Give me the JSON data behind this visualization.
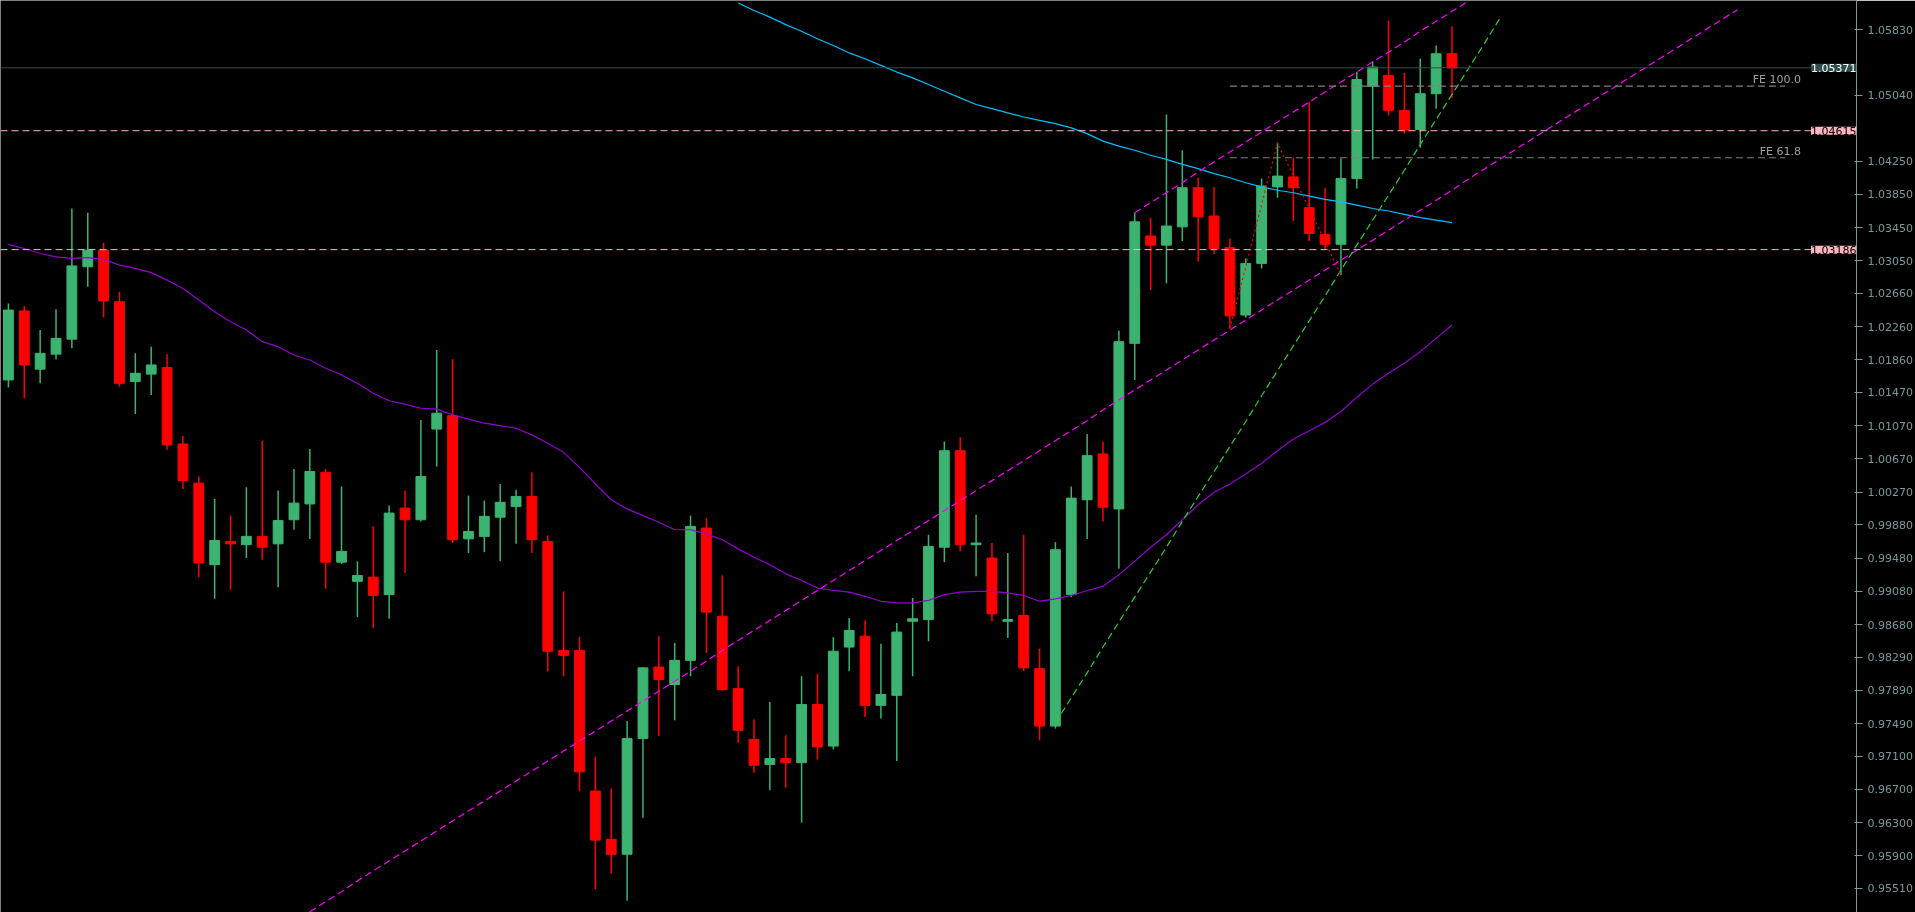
{
  "chart_data": {
    "type": "candlestick",
    "categories": [
      null,
      null,
      null,
      null,
      null,
      null,
      null,
      null,
      null,
      null,
      null,
      null,
      null,
      null,
      null,
      null,
      null,
      null,
      null,
      null,
      null,
      null,
      null,
      null,
      null,
      null,
      null,
      null,
      null,
      null,
      null,
      null,
      null,
      null,
      null,
      null,
      null,
      null,
      null,
      null,
      null,
      null,
      null,
      null,
      null,
      null,
      null,
      null,
      null,
      null,
      null,
      null,
      null,
      null,
      null,
      null,
      null,
      null,
      null,
      null,
      null,
      null,
      null,
      null,
      null,
      null,
      null,
      null,
      null,
      null,
      null,
      null,
      null,
      null,
      null,
      null,
      null,
      null,
      null,
      null,
      null,
      null,
      null,
      null,
      null,
      null,
      null,
      null,
      null,
      null,
      null,
      null,
      null,
      null,
      null,
      null,
      null,
      null,
      null,
      null,
      null,
      null,
      null,
      null,
      null,
      null,
      null,
      null,
      null,
      null,
      null,
      null,
      null,
      null,
      null,
      null,
      null
    ],
    "colors": [
      "#3cb371",
      "#ff0000",
      "#3cb371",
      "#3cb371",
      "#3cb371",
      "#3cb371",
      "#ff0000",
      "#ff0000",
      "#3cb371",
      "#3cb371",
      "#ff0000",
      "#ff0000",
      "#ff0000",
      "#3cb371",
      "#ff0000",
      "#3cb371",
      "#ff0000",
      "#3cb371",
      "#3cb371",
      "#3cb371",
      "#ff0000",
      "#3cb371",
      "#3cb371",
      "#ff0000",
      "#3cb371",
      "#ff0000",
      "#3cb371",
      "#3cb371",
      "#ff0000",
      "#3cb371",
      "#3cb371",
      "#3cb371",
      "#3cb371",
      "#ff0000",
      "#ff0000",
      "#ff0000",
      "#ff0000",
      "#ff0000",
      "#ff0000",
      "#3cb371",
      "#3cb371",
      "#ff0000",
      "#3cb371",
      "#3cb371",
      "#ff0000",
      "#ff0000",
      "#ff0000",
      "#ff0000",
      "#3cb371",
      "#ff0000",
      "#3cb371",
      "#ff0000",
      "#3cb371",
      "#3cb371",
      "#ff0000",
      "#3cb371",
      "#3cb371",
      "#3cb371",
      "#3cb371",
      "#3cb371",
      "#ff0000",
      "#3cb371",
      "#ff0000",
      "#3cb371",
      "#ff0000",
      "#ff0000",
      "#3cb371",
      "#3cb371",
      "#3cb371",
      "#ff0000",
      "#3cb371",
      "#3cb371",
      "#ff0000",
      "#3cb371",
      "#3cb371",
      "#ff0000",
      "#ff0000",
      "#ff0000",
      "#3cb371",
      "#3cb371",
      "#3cb371",
      "#ff0000",
      "#ff0000",
      "#ff0000",
      "#3cb371",
      "#3cb371",
      "#3cb371",
      "#ff0000",
      "#ff0000",
      "#3cb371",
      "#3cb371",
      "#ff0000",
      null,
      null,
      null,
      null,
      null,
      null,
      null,
      null,
      null,
      null,
      null,
      null,
      null,
      null,
      null,
      null,
      null,
      null,
      null,
      null,
      null,
      null,
      null,
      null,
      null
    ],
    "ohlc": [
      [
        1.0162,
        1.0254,
        1.0153,
        1.0246
      ],
      [
        1.0245,
        1.0251,
        1.014,
        1.018
      ],
      [
        1.0175,
        1.0222,
        1.0158,
        1.0194
      ],
      [
        1.0193,
        1.0247,
        1.0187,
        1.0212
      ],
      [
        1.0211,
        1.0368,
        1.02,
        1.0299
      ],
      [
        1.0298,
        1.0363,
        1.0274,
        1.0318
      ],
      [
        1.0318,
        1.0327,
        1.0237,
        1.0257
      ],
      [
        1.0256,
        1.0268,
        1.0154,
        1.0158
      ],
      [
        1.016,
        1.0194,
        1.0121,
        1.017
      ],
      [
        1.0169,
        1.0202,
        1.0144,
        1.018
      ],
      [
        1.0177,
        1.0193,
        1.0078,
        1.0084
      ],
      [
        1.0085,
        1.0095,
        1.0031,
        1.0041
      ],
      [
        1.0038,
        1.0046,
        0.9925,
        0.9942
      ],
      [
        0.994,
        1.0019,
        0.9899,
        0.9969
      ],
      [
        0.9968,
        0.9999,
        0.991,
        0.9965
      ],
      [
        0.9964,
        1.0033,
        0.9948,
        0.9974
      ],
      [
        0.9974,
        1.0089,
        0.9946,
        0.9961
      ],
      [
        0.9965,
        1.0029,
        0.9913,
        0.9993
      ],
      [
        0.9994,
        1.0055,
        0.9982,
        1.0014
      ],
      [
        1.0013,
        1.0079,
        0.9971,
        1.0052
      ],
      [
        1.0051,
        1.0055,
        0.9911,
        0.9943
      ],
      [
        0.9943,
        1.0034,
        0.9941,
        0.9956
      ],
      [
        0.992,
        0.9944,
        0.9877,
        0.9927
      ],
      [
        0.9925,
        0.9986,
        0.9864,
        0.9903
      ],
      [
        0.9904,
        1.0011,
        0.9875,
        1.0002
      ],
      [
        1.0008,
        1.0029,
        0.993,
        0.9994
      ],
      [
        0.9994,
        1.0114,
        0.9992,
        1.0046
      ],
      [
        1.0103,
        1.0198,
        1.0058,
        1.0122
      ],
      [
        1.0119,
        1.0187,
        0.9966,
        0.997
      ],
      [
        0.9971,
        1.0023,
        0.9954,
        0.998
      ],
      [
        0.9974,
        1.0017,
        0.9955,
        0.9998
      ],
      [
        0.9997,
        1.0037,
        0.9944,
        1.0015
      ],
      [
        1.001,
        1.003,
        0.9965,
        1.0022
      ],
      [
        1.0022,
        1.0051,
        0.9954,
        0.997
      ],
      [
        0.9968,
        0.9975,
        0.9812,
        0.9836
      ],
      [
        0.9837,
        0.9908,
        0.9806,
        0.9831
      ],
      [
        0.9837,
        0.9853,
        0.9668,
        0.9691
      ],
      [
        0.9668,
        0.9709,
        0.955,
        0.9609
      ],
      [
        0.961,
        0.9671,
        0.9569,
        0.9592
      ],
      [
        0.9592,
        0.9752,
        0.9536,
        0.9731
      ],
      [
        0.9731,
        0.9817,
        0.9636,
        0.9816
      ],
      [
        0.9817,
        0.9854,
        0.9734,
        0.9802
      ],
      [
        0.9796,
        0.9846,
        0.9753,
        0.9825
      ],
      [
        0.9825,
        0.9999,
        0.9806,
        0.9986
      ],
      [
        0.9984,
        0.9996,
        0.9834,
        0.9883
      ],
      [
        0.9878,
        0.9927,
        0.9788,
        0.979
      ],
      [
        0.9791,
        0.9818,
        0.9726,
        0.9741
      ],
      [
        0.973,
        0.9754,
        0.969,
        0.9699
      ],
      [
        0.97,
        0.9775,
        0.9669,
        0.9707
      ],
      [
        0.9707,
        0.9735,
        0.9672,
        0.9702
      ],
      [
        0.9702,
        0.9806,
        0.963,
        0.9772
      ],
      [
        0.9772,
        0.9809,
        0.9706,
        0.9721
      ],
      [
        0.9722,
        0.9853,
        0.9718,
        0.9836
      ],
      [
        0.9841,
        0.9876,
        0.9812,
        0.9861
      ],
      [
        0.9854,
        0.9873,
        0.9757,
        0.9771
      ],
      [
        0.9771,
        0.9845,
        0.9755,
        0.9784
      ],
      [
        0.9783,
        0.987,
        0.9704,
        0.9859
      ],
      [
        0.9872,
        0.99,
        0.9806,
        0.9875
      ],
      [
        0.9874,
        0.9976,
        0.9848,
        0.9962
      ],
      [
        0.9961,
        1.0088,
        0.9943,
        1.0077
      ],
      [
        1.0077,
        1.0093,
        0.9956,
        0.9964
      ],
      [
        0.9964,
        1.0,
        0.9926,
        0.9966
      ],
      [
        0.9948,
        0.9966,
        0.9872,
        0.9881
      ],
      [
        0.9872,
        0.9954,
        0.9852,
        0.9874
      ],
      [
        0.9879,
        0.9976,
        0.9812,
        0.9816
      ],
      [
        0.9815,
        0.9839,
        0.9729,
        0.9746
      ],
      [
        0.9746,
        0.9967,
        0.9743,
        0.9958
      ],
      [
        0.9904,
        1.0034,
        0.9901,
        1.002
      ],
      [
        1.0018,
        1.0097,
        0.9971,
        1.0071
      ],
      [
        1.0073,
        1.0088,
        0.9992,
        1.0009
      ],
      [
        1.0007,
        1.0221,
        0.9935,
        1.0208
      ],
      [
        1.0206,
        1.0363,
        1.0162,
        1.0352
      ],
      [
        1.0335,
        1.0357,
        1.027,
        1.0324
      ],
      [
        1.0324,
        1.0481,
        1.0278,
        1.0347
      ],
      [
        1.0346,
        1.0438,
        1.0329,
        1.0393
      ],
      [
        1.0393,
        1.0405,
        1.0304,
        1.0358
      ],
      [
        1.0359,
        1.0394,
        1.0313,
        1.032
      ],
      [
        1.0321,
        1.0332,
        1.0224,
        1.0239
      ],
      [
        1.024,
        1.0308,
        1.0237,
        1.0302
      ],
      [
        1.0302,
        1.0404,
        1.0296,
        1.0395
      ],
      [
        1.0394,
        1.0447,
        1.0381,
        1.0407
      ],
      [
        1.0406,
        1.0429,
        1.0353,
        1.0393
      ],
      [
        1.0369,
        1.0496,
        1.0329,
        1.0338
      ],
      [
        1.0337,
        1.0393,
        1.0319,
        1.0325
      ],
      [
        1.0325,
        1.0428,
        1.0288,
        1.0404
      ],
      [
        1.0404,
        1.0532,
        1.0392,
        1.0523
      ],
      [
        1.0515,
        1.0545,
        1.0427,
        1.0538
      ],
      [
        1.0528,
        1.0594,
        1.048,
        1.0486
      ],
      [
        1.0486,
        1.0531,
        1.0458,
        1.0462
      ],
      [
        1.0463,
        1.0548,
        1.0441,
        1.0506
      ],
      [
        1.0506,
        1.0564,
        1.0488,
        1.0554
      ],
      [
        1.0554,
        1.0587,
        1.0501,
        1.0537
      ],
      null,
      null,
      null,
      null,
      null,
      null,
      null,
      null,
      null,
      null,
      null,
      null,
      null,
      null,
      null,
      null,
      null,
      null,
      null,
      null,
      null,
      null,
      null,
      null,
      null
    ],
    "series": [
      {
        "type": "line",
        "color": "#9400d3",
        "line_style": "solid",
        "values": [
          1.0325,
          1.032,
          1.0314,
          1.031,
          1.0308,
          1.0309,
          1.0307,
          1.03,
          1.0296,
          1.0291,
          1.0282,
          1.0272,
          1.0258,
          1.0244,
          1.0232,
          1.0222,
          1.0208,
          1.0202,
          1.0192,
          1.0186,
          1.0176,
          1.0168,
          1.0158,
          1.0146,
          1.0137,
          1.0133,
          1.0128,
          1.0127,
          1.012,
          1.0115,
          1.011,
          1.0107,
          1.0104,
          1.0096,
          1.0086,
          1.0075,
          1.0057,
          1.0037,
          1.0018,
          1.0007,
          0.9999,
          0.9991,
          0.9982,
          0.9982,
          0.9977,
          0.997,
          0.9959,
          0.9949,
          0.994,
          0.9929,
          0.9921,
          0.9912,
          0.9909,
          0.9907,
          0.9902,
          0.9896,
          0.9894,
          0.9894,
          0.9897,
          0.9904,
          0.9907,
          0.9908,
          0.9908,
          0.9906,
          0.9903,
          0.9896,
          0.9899,
          0.9903,
          0.9909,
          0.9914,
          0.9928,
          0.9944,
          0.9961,
          0.9976,
          0.9994,
          1.0012,
          1.0027,
          1.0037,
          1.0049,
          1.0062,
          1.0077,
          1.0091,
          1.0101,
          1.0111,
          1.0124,
          1.0141,
          1.0157,
          1.017,
          1.0182,
          1.0196,
          1.0212,
          1.0228,
          null,
          null,
          null,
          null,
          null,
          null,
          null,
          null,
          null,
          null,
          null,
          null,
          null,
          null,
          null,
          null,
          null,
          null,
          null,
          null,
          null,
          null,
          null,
          null,
          null
        ]
      },
      {
        "type": "line",
        "color": "#00bfff",
        "line_style": "solid",
        "values": [
          null,
          null,
          null,
          null,
          null,
          null,
          null,
          null,
          null,
          null,
          null,
          null,
          null,
          null,
          null,
          null,
          null,
          null,
          null,
          null,
          null,
          null,
          null,
          null,
          null,
          null,
          null,
          null,
          null,
          null,
          null,
          null,
          null,
          null,
          null,
          null,
          null,
          null,
          null,
          null,
          null,
          null,
          null,
          null,
          null,
          null,
          1.0615,
          1.0606,
          1.0598,
          1.0589,
          1.0581,
          1.0572,
          1.0564,
          1.0555,
          1.0548,
          1.054,
          1.0532,
          1.0525,
          1.0517,
          1.0509,
          1.0501,
          1.0493,
          1.0488,
          1.0483,
          1.0478,
          1.0474,
          1.047,
          1.0465,
          1.0458,
          1.0449,
          1.0443,
          1.0438,
          1.0432,
          1.0427,
          1.0421,
          1.0416,
          1.041,
          1.0405,
          1.0399,
          1.0394,
          1.039,
          1.0387,
          1.0383,
          1.0379,
          1.0376,
          1.0372,
          1.0368,
          1.0365,
          1.0361,
          1.0357,
          1.0354,
          1.0351,
          null,
          null,
          null,
          null,
          null,
          null,
          null,
          null,
          null,
          null,
          null,
          null,
          null,
          null,
          null,
          null,
          null,
          null,
          null,
          null,
          null,
          null,
          null,
          null,
          null
        ]
      },
      {
        "type": "line",
        "color": "#ff00ff",
        "line_style": "dashed",
        "values": [
          null,
          null,
          null,
          null,
          null,
          null,
          null,
          null,
          null,
          null,
          null,
          null,
          null,
          null,
          null,
          null,
          null,
          null,
          null,
          null,
          null,
          null,
          null,
          null,
          null,
          null,
          null,
          null,
          null,
          null,
          null,
          null,
          null,
          null,
          null,
          null,
          null,
          null,
          null,
          null,
          null,
          null,
          null,
          null,
          null,
          null,
          null,
          null,
          null,
          null,
          null,
          null,
          null,
          null,
          null,
          null,
          null,
          null,
          null,
          null,
          null,
          null,
          null,
          null,
          null,
          null,
          null,
          null,
          null,
          null,
          null,
          1.0363,
          1.0375,
          1.0387,
          1.0399,
          1.0412,
          1.0424,
          1.0436,
          1.0448,
          1.046,
          1.0472,
          1.0484,
          1.0496,
          1.0508,
          1.052,
          1.0532,
          1.0544,
          1.0556,
          1.0568,
          1.0581,
          1.0593,
          1.0605,
          1.0617,
          null,
          null,
          null,
          null,
          null,
          null,
          null,
          null,
          null,
          null,
          null,
          null,
          null,
          null,
          null,
          null,
          null,
          null,
          null,
          null,
          null,
          null,
          null,
          null
        ]
      },
      {
        "type": "line",
        "color": "#ff00ff",
        "line_style": "dashed",
        "values": [
          null,
          null,
          null,
          null,
          null,
          null,
          null,
          null,
          null,
          null,
          null,
          null,
          null,
          null,
          null,
          null,
          null,
          null,
          null,
          0.9523,
          0.9535,
          0.9547,
          0.956,
          0.9572,
          0.9584,
          0.9596,
          0.9608,
          0.962,
          0.9632,
          0.9644,
          0.9656,
          0.9668,
          0.968,
          0.9692,
          0.9704,
          0.9716,
          0.9728,
          0.974,
          0.9752,
          0.9764,
          0.9776,
          0.9788,
          0.98,
          0.9812,
          0.9824,
          0.9837,
          0.9849,
          0.9861,
          0.9873,
          0.9885,
          0.9897,
          0.9909,
          0.9921,
          0.9933,
          0.9945,
          0.9957,
          0.9969,
          0.9981,
          0.9993,
          1.0005,
          1.0017,
          1.0029,
          1.0041,
          1.0053,
          1.0065,
          1.0077,
          1.0089,
          1.0101,
          1.0113,
          1.0126,
          1.0138,
          1.015,
          1.0162,
          1.0174,
          1.0186,
          1.0198,
          1.021,
          1.0222,
          1.0234,
          1.0246,
          1.0258,
          1.027,
          1.0282,
          1.0294,
          1.0306,
          1.0318,
          1.033,
          1.0342,
          1.0354,
          1.0366,
          1.0378,
          1.039,
          1.0403,
          1.0415,
          1.0427,
          1.0439,
          1.0451,
          1.0463,
          1.0475,
          1.0487,
          1.0499,
          1.0511,
          1.0523,
          1.0535,
          1.0547,
          1.0559,
          1.0571,
          1.0583,
          1.0595,
          1.0607,
          null,
          null,
          null,
          null,
          null,
          null,
          null
        ]
      },
      {
        "type": "line",
        "color": "#32cd32",
        "line_style": "dashed",
        "values": [
          null,
          null,
          null,
          null,
          null,
          null,
          null,
          null,
          null,
          null,
          null,
          null,
          null,
          null,
          null,
          null,
          null,
          null,
          null,
          null,
          null,
          null,
          null,
          null,
          null,
          null,
          null,
          null,
          null,
          null,
          null,
          null,
          null,
          null,
          null,
          null,
          null,
          null,
          null,
          null,
          null,
          null,
          null,
          null,
          null,
          null,
          null,
          null,
          null,
          null,
          null,
          null,
          null,
          null,
          null,
          null,
          null,
          null,
          null,
          null,
          null,
          null,
          null,
          null,
          null,
          null,
          0.975,
          0.978,
          0.981,
          0.9841,
          0.9871,
          0.9901,
          0.9931,
          0.9961,
          0.9992,
          1.0022,
          1.0052,
          1.0082,
          1.0112,
          1.0143,
          1.0173,
          1.0203,
          1.0233,
          1.0263,
          1.0294,
          1.0324,
          1.0354,
          1.0384,
          1.0414,
          1.0445,
          1.0475,
          1.0505,
          1.0535,
          1.0565,
          1.0596,
          null,
          null,
          null,
          null,
          null,
          null,
          null,
          null,
          null,
          null,
          null,
          null,
          null,
          null,
          null,
          null,
          null,
          null,
          null,
          null,
          null,
          null
        ]
      },
      {
        "type": "line",
        "color": "#ff0000",
        "line_style": "dotted",
        "values": [
          null,
          null,
          null,
          null,
          null,
          null,
          null,
          null,
          null,
          null,
          null,
          null,
          null,
          null,
          null,
          null,
          null,
          null,
          null,
          null,
          null,
          null,
          null,
          null,
          null,
          null,
          null,
          null,
          null,
          null,
          null,
          null,
          null,
          null,
          null,
          null,
          null,
          null,
          null,
          null,
          null,
          null,
          null,
          null,
          null,
          null,
          null,
          null,
          null,
          null,
          null,
          null,
          null,
          null,
          null,
          null,
          null,
          null,
          null,
          null,
          null,
          null,
          null,
          null,
          null,
          null,
          null,
          null,
          null,
          null,
          null,
          null,
          null,
          null,
          null,
          null,
          null,
          1.0224,
          1.0298,
          1.0373,
          1.0447,
          1.0407,
          1.0368,
          1.0328,
          1.0288,
          null,
          null,
          null,
          null,
          null,
          null,
          null,
          null,
          null,
          null,
          null,
          null,
          null,
          null,
          null,
          null,
          null,
          null,
          null,
          null,
          null,
          null,
          null,
          null,
          null,
          null,
          null,
          null,
          null,
          null,
          null,
          null
        ]
      },
      {
        "type": "line",
        "color": "#808080",
        "line_style": "dashed",
        "values": [
          null,
          null,
          null,
          null,
          null,
          null,
          null,
          null,
          null,
          null,
          null,
          null,
          null,
          null,
          null,
          null,
          null,
          null,
          null,
          null,
          null,
          null,
          null,
          null,
          null,
          null,
          null,
          null,
          null,
          null,
          null,
          null,
          null,
          null,
          null,
          null,
          null,
          null,
          null,
          null,
          null,
          null,
          null,
          null,
          null,
          null,
          null,
          null,
          null,
          null,
          null,
          null,
          null,
          null,
          null,
          null,
          null,
          null,
          null,
          null,
          null,
          null,
          null,
          null,
          null,
          null,
          null,
          null,
          null,
          null,
          null,
          null,
          null,
          null,
          null,
          null,
          null,
          1.0515,
          1.0515,
          1.0515,
          1.0515,
          1.0515,
          1.0515,
          1.0515,
          1.0515,
          1.0515,
          1.0515,
          1.0515,
          1.0515,
          1.0515,
          1.0515,
          1.0515,
          1.0515,
          1.0515,
          1.0515,
          1.0515,
          1.0515,
          1.0515,
          1.0515,
          1.0515,
          1.0515,
          1.0515,
          1.0515,
          1.0515,
          1.0515,
          1.0515,
          1.0515,
          1.0515,
          1.0515,
          1.0515,
          1.0515,
          1.0515,
          1.0515,
          null,
          null,
          null,
          null
        ]
      },
      {
        "type": "line",
        "color": "#808080",
        "line_style": "dashed",
        "values": [
          null,
          null,
          null,
          null,
          null,
          null,
          null,
          null,
          null,
          null,
          null,
          null,
          null,
          null,
          null,
          null,
          null,
          null,
          null,
          null,
          null,
          null,
          null,
          null,
          null,
          null,
          null,
          null,
          null,
          null,
          null,
          null,
          null,
          null,
          null,
          null,
          null,
          null,
          null,
          null,
          null,
          null,
          null,
          null,
          null,
          null,
          null,
          null,
          null,
          null,
          null,
          null,
          null,
          null,
          null,
          null,
          null,
          null,
          null,
          null,
          null,
          null,
          null,
          null,
          null,
          null,
          null,
          null,
          null,
          null,
          null,
          null,
          null,
          null,
          null,
          null,
          null,
          1.0429,
          1.0429,
          1.0429,
          1.0429,
          1.0429,
          1.0429,
          1.0429,
          1.0429,
          1.0429,
          1.0429,
          1.0429,
          1.0429,
          1.0429,
          1.0429,
          1.0429,
          1.0429,
          1.0429,
          1.0429,
          1.0429,
          1.0429,
          1.0429,
          1.0429,
          1.0429,
          1.0429,
          1.0429,
          1.0429,
          1.0429,
          1.0429,
          1.0429,
          1.0429,
          1.0429,
          1.0429,
          1.0429,
          1.0429,
          1.0429,
          1.0429,
          null,
          null,
          null,
          null
        ]
      }
    ],
    "ref_lines": [
      {
        "axis": "y",
        "value": 1.05371,
        "label": "1.05371",
        "color": "#2f4f4f",
        "line_style": "solid"
      },
      {
        "axis": "y",
        "value": 1.04615,
        "label": "1.04615",
        "color": "#ffb6c1",
        "line_style": "dashed"
      },
      {
        "axis": "y",
        "value": 1.03186,
        "label": "1.03186",
        "color": "#ffb6c1",
        "line_style": "dashed"
      }
    ],
    "annotations": [
      {
        "text": "FE 100.0",
        "y": 1.0515
      },
      {
        "text": "FE 61.8",
        "y": 1.0429
      }
    ],
    "ylim": [
      0.9522,
      1.0618
    ],
    "yticks": [
      {
        "value": 1.0583,
        "label": "1.05830"
      },
      {
        "value": 1.0504,
        "label": "1.05040"
      },
      {
        "value": 1.0425,
        "label": "1.04250"
      },
      {
        "value": 1.0385,
        "label": "1.03850"
      },
      {
        "value": 1.0345,
        "label": "1.03450"
      },
      {
        "value": 1.0305,
        "label": "1.03050"
      },
      {
        "value": 1.0266,
        "label": "1.02660"
      },
      {
        "value": 1.0226,
        "label": "1.02260"
      },
      {
        "value": 1.0186,
        "label": "1.01860"
      },
      {
        "value": 1.0147,
        "label": "1.01470"
      },
      {
        "value": 1.0107,
        "label": "1.01070"
      },
      {
        "value": 1.0067,
        "label": "1.00670"
      },
      {
        "value": 1.0027,
        "label": "1.00270"
      },
      {
        "value": 0.9988,
        "label": "0.99880"
      },
      {
        "value": 0.9948,
        "label": "0.99480"
      },
      {
        "value": 0.9908,
        "label": "0.99080"
      },
      {
        "value": 0.9868,
        "label": "0.98680"
      },
      {
        "value": 0.9829,
        "label": "0.98290"
      },
      {
        "value": 0.9789,
        "label": "0.97890"
      },
      {
        "value": 0.9749,
        "label": "0.97490"
      },
      {
        "value": 0.971,
        "label": "0.97100"
      },
      {
        "value": 0.967,
        "label": "0.96700"
      },
      {
        "value": 0.963,
        "label": "0.96300"
      },
      {
        "value": 0.959,
        "label": "0.95900"
      },
      {
        "value": 0.9551,
        "label": "0.95510"
      }
    ],
    "tick_labels": "y"
  }
}
